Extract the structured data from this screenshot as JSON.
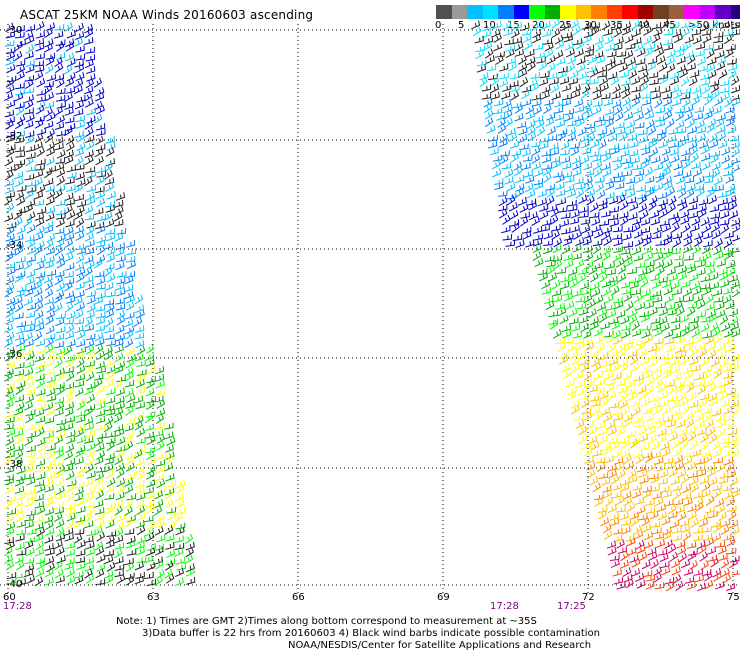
{
  "title": "ASCAT 25KM NOAA Winds 20160603 ascending",
  "legend": {
    "colors": [
      "#505050",
      "#9a9a9a",
      "#00c0ff",
      "#00e0ff",
      "#0080ff",
      "#0000ff",
      "#00ff00",
      "#00b000",
      "#ffff00",
      "#ffc000",
      "#ff8000",
      "#ff4000",
      "#ff0000",
      "#a00000",
      "#704020",
      "#9a6040",
      "#ff00ff",
      "#c000ff",
      "#6000c0",
      "#2b0080"
    ],
    "labels": [
      "0",
      "5",
      "10",
      "15",
      "20",
      "25",
      "30",
      "35",
      "40",
      "45",
      ">50 knots"
    ]
  },
  "axes": {
    "y_labels": [
      "-30",
      "-32",
      "-34",
      "-36",
      "-38",
      "-40"
    ],
    "x_labels": [
      "60",
      "63",
      "66",
      "69",
      "72",
      "75"
    ],
    "grid": "dotted"
  },
  "swath_times": [
    "17:28",
    "17:28",
    "17:25"
  ],
  "notes": [
    "Note: 1) Times are GMT 2)Times along bottom correspond to measurement at ~35S",
    "3)Data buffer is 22 hrs from 20160603 4) Black wind barbs indicate possible contamination",
    "NOAA/NESDIS/Center for Satellite Applications and Research"
  ]
}
